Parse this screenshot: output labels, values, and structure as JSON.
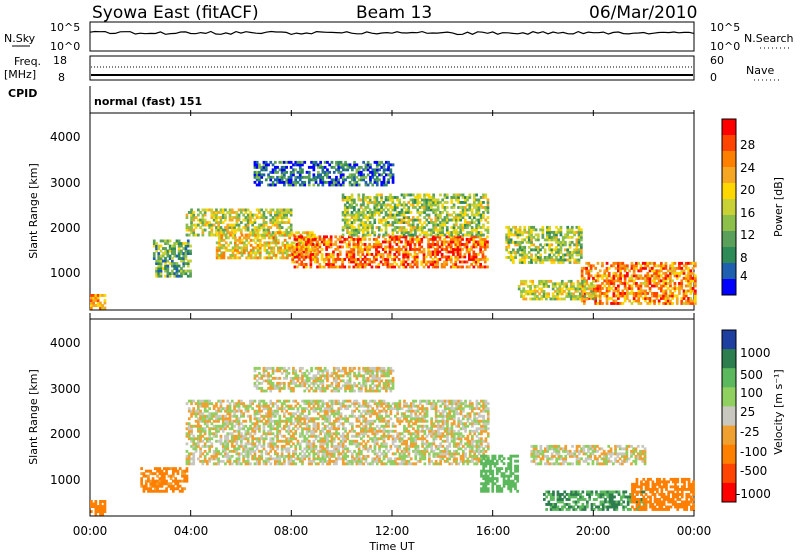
{
  "header": {
    "title": "Syowa East (fitACF)",
    "beam": "Beam 13",
    "date": "06/Mar/2010"
  },
  "aux_panels": {
    "nsky_label": "N.Sky",
    "nsky_ticks": [
      "10^5",
      "10^0"
    ],
    "nsearch_label": "N.Search",
    "nsearch_ticks": [
      "10^5",
      "10^0"
    ],
    "freq_label": "Freq.",
    "freq_units": "[MHz]",
    "freq_ticks": [
      "18",
      "8"
    ],
    "nave_label": "Nave",
    "nave_ticks": [
      "60",
      "0"
    ],
    "cpid_label": "CPID",
    "cpid_value": "normal (fast) 151"
  },
  "chart_data": [
    {
      "type": "heatmap",
      "quantity": "Power",
      "ylabel": "Slant Range [km]",
      "ylim": [
        180,
        4500
      ],
      "yticks": [
        "4000",
        "3000",
        "2000",
        "1000"
      ],
      "colorbar": {
        "label": "Power [dB]",
        "ticks": [
          "28",
          "24",
          "20",
          "16",
          "12",
          "8",
          "4"
        ],
        "colors": [
          "#0000ff",
          "#1e5fb0",
          "#2e8b57",
          "#5aa05a",
          "#8cc04a",
          "#c8d236",
          "#ffd700",
          "#f5a623",
          "#ff7f00",
          "#ff4500",
          "#ff0000"
        ]
      },
      "echo_bands": [
        {
          "t": [
            0.0,
            0.6
          ],
          "r": [
            200,
            500
          ],
          "level": 0.7
        },
        {
          "t": [
            2.5,
            4.0
          ],
          "r": [
            900,
            1700
          ],
          "level": 0.35
        },
        {
          "t": [
            3.8,
            8.0
          ],
          "r": [
            1800,
            2400
          ],
          "level": 0.5
        },
        {
          "t": [
            5.0,
            9.0
          ],
          "r": [
            1300,
            1900
          ],
          "level": 0.6
        },
        {
          "t": [
            8.0,
            15.8
          ],
          "r": [
            1100,
            1800
          ],
          "level": 0.8
        },
        {
          "t": [
            10.0,
            15.8
          ],
          "r": [
            1800,
            2700
          ],
          "level": 0.45
        },
        {
          "t": [
            6.5,
            12.0
          ],
          "r": [
            2900,
            3400
          ],
          "level": 0.2
        },
        {
          "t": [
            16.5,
            19.5
          ],
          "r": [
            1200,
            2000
          ],
          "level": 0.45
        },
        {
          "t": [
            19.5,
            24.0
          ],
          "r": [
            300,
            1200
          ],
          "level": 0.75
        },
        {
          "t": [
            17.0,
            20.0
          ],
          "r": [
            400,
            800
          ],
          "level": 0.5
        }
      ]
    },
    {
      "type": "heatmap",
      "quantity": "Velocity",
      "ylabel": "Slant Range [km]",
      "ylim": [
        180,
        4500
      ],
      "yticks": [
        "4000",
        "3000",
        "2000",
        "1000"
      ],
      "colorbar": {
        "label": "Velocity [m s⁻¹]",
        "ticks": [
          "1000",
          "500",
          "100",
          "25",
          "-25",
          "-100",
          "-500",
          "-1000"
        ],
        "colors": [
          "#1e3fa0",
          "#2e7d4f",
          "#5cb85c",
          "#90d060",
          "#c8c8c0",
          "#f0a030",
          "#ff7f00",
          "#ff4500",
          "#ff0000"
        ]
      },
      "echo_bands": [
        {
          "t": [
            0.0,
            0.6
          ],
          "r": [
            200,
            500
          ],
          "vel": -400
        },
        {
          "t": [
            2.0,
            3.8
          ],
          "r": [
            700,
            1200
          ],
          "vel": -150
        },
        {
          "t": [
            3.8,
            15.8
          ],
          "r": [
            1300,
            2700
          ],
          "vel": 0
        },
        {
          "t": [
            6.5,
            12.0
          ],
          "r": [
            2900,
            3400
          ],
          "vel": 0
        },
        {
          "t": [
            15.5,
            17.0
          ],
          "r": [
            700,
            1500
          ],
          "vel": 200
        },
        {
          "t": [
            17.5,
            22.0
          ],
          "r": [
            1300,
            1700
          ],
          "vel": 0
        },
        {
          "t": [
            18.0,
            22.0
          ],
          "r": [
            300,
            700
          ],
          "vel": 500
        },
        {
          "t": [
            21.5,
            24.0
          ],
          "r": [
            300,
            1000
          ],
          "vel": -400
        }
      ]
    }
  ],
  "xaxis": {
    "label": "Time UT",
    "xlim": [
      0,
      24
    ],
    "ticks": [
      "00:00",
      "04:00",
      "08:00",
      "12:00",
      "16:00",
      "20:00",
      "00:00"
    ]
  }
}
